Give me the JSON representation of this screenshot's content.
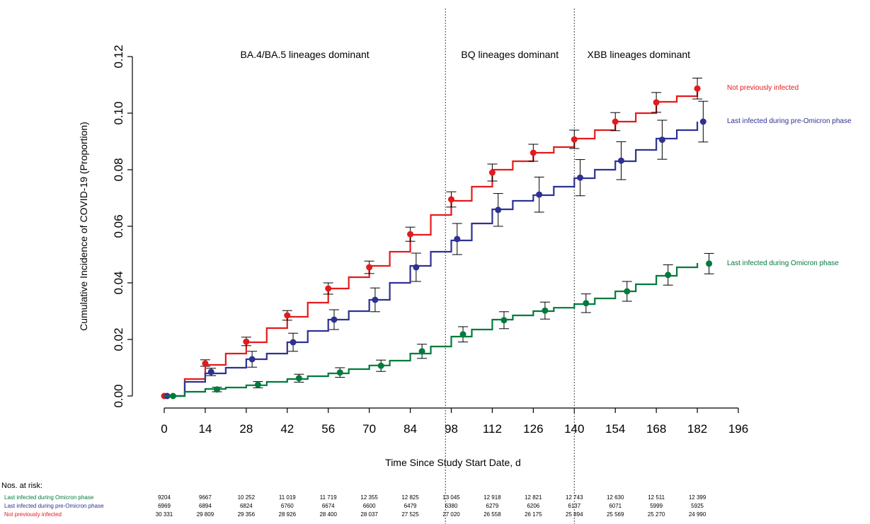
{
  "chart_data": {
    "type": "line",
    "xlabel": "Time Since Study Start Date, d",
    "ylabel": "Cumulative Incidence of COVID-19 (Proportion)",
    "xlim": [
      0,
      196
    ],
    "ylim": [
      0,
      0.12
    ],
    "x_ticks": [
      "0",
      "14",
      "28",
      "42",
      "56",
      "70",
      "84",
      "98",
      "112",
      "126",
      "140",
      "154",
      "168",
      "182",
      "196"
    ],
    "y_ticks": [
      "0.00",
      "0.02",
      "0.04",
      "0.06",
      "0.08",
      "0.10",
      "0.12"
    ],
    "grid": false,
    "vlines": [
      96,
      140
    ],
    "phases": [
      {
        "label": "BA.4/BA.5 lineages dominant",
        "x_center": 48
      },
      {
        "label": "BQ lineages dominant",
        "x_center": 118
      },
      {
        "label": "XBB lineages dominant",
        "x_center": 162
      }
    ],
    "series": [
      {
        "name": "Not previously infected",
        "color": "#e41a1c",
        "curve": [
          [
            0,
            0
          ],
          [
            7,
            0.006
          ],
          [
            14,
            0.011
          ],
          [
            21,
            0.015
          ],
          [
            28,
            0.019
          ],
          [
            35,
            0.024
          ],
          [
            42,
            0.028
          ],
          [
            49,
            0.033
          ],
          [
            56,
            0.038
          ],
          [
            63,
            0.042
          ],
          [
            70,
            0.046
          ],
          [
            77,
            0.051
          ],
          [
            84,
            0.057
          ],
          [
            91,
            0.064
          ],
          [
            98,
            0.069
          ],
          [
            105,
            0.074
          ],
          [
            112,
            0.08
          ],
          [
            119,
            0.083
          ],
          [
            126,
            0.086
          ],
          [
            133,
            0.088
          ],
          [
            140,
            0.091
          ],
          [
            147,
            0.094
          ],
          [
            154,
            0.097
          ],
          [
            161,
            0.1
          ],
          [
            168,
            0.104
          ],
          [
            175,
            0.106
          ],
          [
            182,
            0.109
          ]
        ],
        "points": [
          {
            "x": 0,
            "y": 0,
            "lo": 0,
            "hi": 0
          },
          {
            "x": 14,
            "y": 0.0115,
            "lo": 0.0105,
            "hi": 0.0128
          },
          {
            "x": 28,
            "y": 0.0192,
            "lo": 0.0178,
            "hi": 0.0208
          },
          {
            "x": 42,
            "y": 0.0285,
            "lo": 0.0268,
            "hi": 0.0302
          },
          {
            "x": 56,
            "y": 0.038,
            "lo": 0.036,
            "hi": 0.04
          },
          {
            "x": 70,
            "y": 0.0455,
            "lo": 0.0433,
            "hi": 0.0477
          },
          {
            "x": 84,
            "y": 0.0572,
            "lo": 0.0547,
            "hi": 0.0597
          },
          {
            "x": 98,
            "y": 0.0695,
            "lo": 0.0668,
            "hi": 0.0722
          },
          {
            "x": 112,
            "y": 0.079,
            "lo": 0.076,
            "hi": 0.082
          },
          {
            "x": 126,
            "y": 0.086,
            "lo": 0.083,
            "hi": 0.089
          },
          {
            "x": 140,
            "y": 0.0907,
            "lo": 0.0875,
            "hi": 0.094
          },
          {
            "x": 154,
            "y": 0.097,
            "lo": 0.0938,
            "hi": 0.1002
          },
          {
            "x": 168,
            "y": 0.1038,
            "lo": 0.1003,
            "hi": 0.1073
          },
          {
            "x": 182,
            "y": 0.1087,
            "lo": 0.105,
            "hi": 0.1124
          }
        ]
      },
      {
        "name": "Last infected during pre-Omicron phase",
        "color": "#2e3192",
        "curve": [
          [
            0,
            0
          ],
          [
            7,
            0.005
          ],
          [
            14,
            0.008
          ],
          [
            21,
            0.01
          ],
          [
            28,
            0.013
          ],
          [
            35,
            0.015
          ],
          [
            42,
            0.019
          ],
          [
            49,
            0.023
          ],
          [
            56,
            0.027
          ],
          [
            63,
            0.03
          ],
          [
            70,
            0.034
          ],
          [
            77,
            0.04
          ],
          [
            84,
            0.046
          ],
          [
            91,
            0.051
          ],
          [
            98,
            0.055
          ],
          [
            105,
            0.061
          ],
          [
            112,
            0.066
          ],
          [
            119,
            0.069
          ],
          [
            126,
            0.071
          ],
          [
            133,
            0.074
          ],
          [
            140,
            0.077
          ],
          [
            147,
            0.08
          ],
          [
            154,
            0.083
          ],
          [
            161,
            0.087
          ],
          [
            168,
            0.091
          ],
          [
            175,
            0.094
          ],
          [
            182,
            0.097
          ]
        ],
        "points": [
          {
            "x": 1,
            "y": 0,
            "lo": 0,
            "hi": 0
          },
          {
            "x": 16,
            "y": 0.0085,
            "lo": 0.0072,
            "hi": 0.0098
          },
          {
            "x": 30,
            "y": 0.013,
            "lo": 0.0102,
            "hi": 0.0158
          },
          {
            "x": 44,
            "y": 0.019,
            "lo": 0.0158,
            "hi": 0.0222
          },
          {
            "x": 58,
            "y": 0.027,
            "lo": 0.0235,
            "hi": 0.0305
          },
          {
            "x": 72,
            "y": 0.034,
            "lo": 0.0298,
            "hi": 0.0382
          },
          {
            "x": 86,
            "y": 0.0455,
            "lo": 0.0405,
            "hi": 0.0505
          },
          {
            "x": 100,
            "y": 0.0555,
            "lo": 0.05,
            "hi": 0.061
          },
          {
            "x": 114,
            "y": 0.0658,
            "lo": 0.06,
            "hi": 0.0716
          },
          {
            "x": 128,
            "y": 0.0712,
            "lo": 0.065,
            "hi": 0.0774
          },
          {
            "x": 142,
            "y": 0.0772,
            "lo": 0.0708,
            "hi": 0.0836
          },
          {
            "x": 156,
            "y": 0.0832,
            "lo": 0.0765,
            "hi": 0.0899
          },
          {
            "x": 170,
            "y": 0.0906,
            "lo": 0.0837,
            "hi": 0.0975
          },
          {
            "x": 184,
            "y": 0.097,
            "lo": 0.0898,
            "hi": 0.1042
          }
        ]
      },
      {
        "name": "Last infected during Omicron phase",
        "color": "#007a3d",
        "curve": [
          [
            0,
            0
          ],
          [
            7,
            0.0015
          ],
          [
            14,
            0.0025
          ],
          [
            21,
            0.003
          ],
          [
            28,
            0.0038
          ],
          [
            35,
            0.005
          ],
          [
            42,
            0.006
          ],
          [
            49,
            0.007
          ],
          [
            56,
            0.008
          ],
          [
            63,
            0.0095
          ],
          [
            70,
            0.0108
          ],
          [
            77,
            0.0125
          ],
          [
            84,
            0.015
          ],
          [
            91,
            0.0175
          ],
          [
            98,
            0.021
          ],
          [
            105,
            0.0235
          ],
          [
            112,
            0.027
          ],
          [
            119,
            0.0285
          ],
          [
            126,
            0.03
          ],
          [
            133,
            0.0312
          ],
          [
            140,
            0.0325
          ],
          [
            147,
            0.0345
          ],
          [
            154,
            0.037
          ],
          [
            161,
            0.0395
          ],
          [
            168,
            0.0425
          ],
          [
            175,
            0.0455
          ],
          [
            182,
            0.047
          ]
        ],
        "points": [
          {
            "x": 3,
            "y": 0,
            "lo": 0,
            "hi": 0
          },
          {
            "x": 18,
            "y": 0.0023,
            "lo": 0.0015,
            "hi": 0.0031
          },
          {
            "x": 32,
            "y": 0.004,
            "lo": 0.0029,
            "hi": 0.0051
          },
          {
            "x": 46,
            "y": 0.0063,
            "lo": 0.0049,
            "hi": 0.0077
          },
          {
            "x": 60,
            "y": 0.0083,
            "lo": 0.0066,
            "hi": 0.01
          },
          {
            "x": 74,
            "y": 0.0107,
            "lo": 0.0087,
            "hi": 0.0127
          },
          {
            "x": 88,
            "y": 0.0158,
            "lo": 0.0133,
            "hi": 0.0183
          },
          {
            "x": 102,
            "y": 0.0218,
            "lo": 0.0191,
            "hi": 0.0245
          },
          {
            "x": 116,
            "y": 0.0268,
            "lo": 0.0238,
            "hi": 0.0298
          },
          {
            "x": 130,
            "y": 0.0302,
            "lo": 0.0272,
            "hi": 0.0332
          },
          {
            "x": 144,
            "y": 0.0328,
            "lo": 0.0295,
            "hi": 0.0361
          },
          {
            "x": 158,
            "y": 0.037,
            "lo": 0.0335,
            "hi": 0.0405
          },
          {
            "x": 172,
            "y": 0.0428,
            "lo": 0.0392,
            "hi": 0.0464
          },
          {
            "x": 186,
            "y": 0.0468,
            "lo": 0.0432,
            "hi": 0.0504
          }
        ]
      }
    ],
    "risk_table": {
      "title": "Nos. at risk:",
      "x": [
        0,
        14,
        28,
        42,
        56,
        70,
        84,
        98,
        112,
        126,
        140,
        154,
        168,
        182
      ],
      "rows": [
        {
          "label": "Last infected during Omicron phase",
          "color": "#007a3d",
          "values": [
            "9204",
            "9667",
            "10 252",
            "11 019",
            "11 719",
            "12 355",
            "12 825",
            "13 045",
            "12 918",
            "12 821",
            "12 743",
            "12 630",
            "12 511",
            "12 399"
          ]
        },
        {
          "label": "Last infected during pre-Omicron phase",
          "color": "#2e3192",
          "values": [
            "6969",
            "6894",
            "6824",
            "6760",
            "6674",
            "6600",
            "6479",
            "6380",
            "6279",
            "6206",
            "6137",
            "6071",
            "5999",
            "5925"
          ]
        },
        {
          "label": "Not previously infected",
          "color": "#e41a1c",
          "values": [
            "30 331",
            "29 809",
            "29 356",
            "28 926",
            "28 400",
            "28 037",
            "27 525",
            "27 020",
            "26 558",
            "26 175",
            "25 894",
            "25 569",
            "25 270",
            "24 990"
          ]
        }
      ]
    }
  }
}
